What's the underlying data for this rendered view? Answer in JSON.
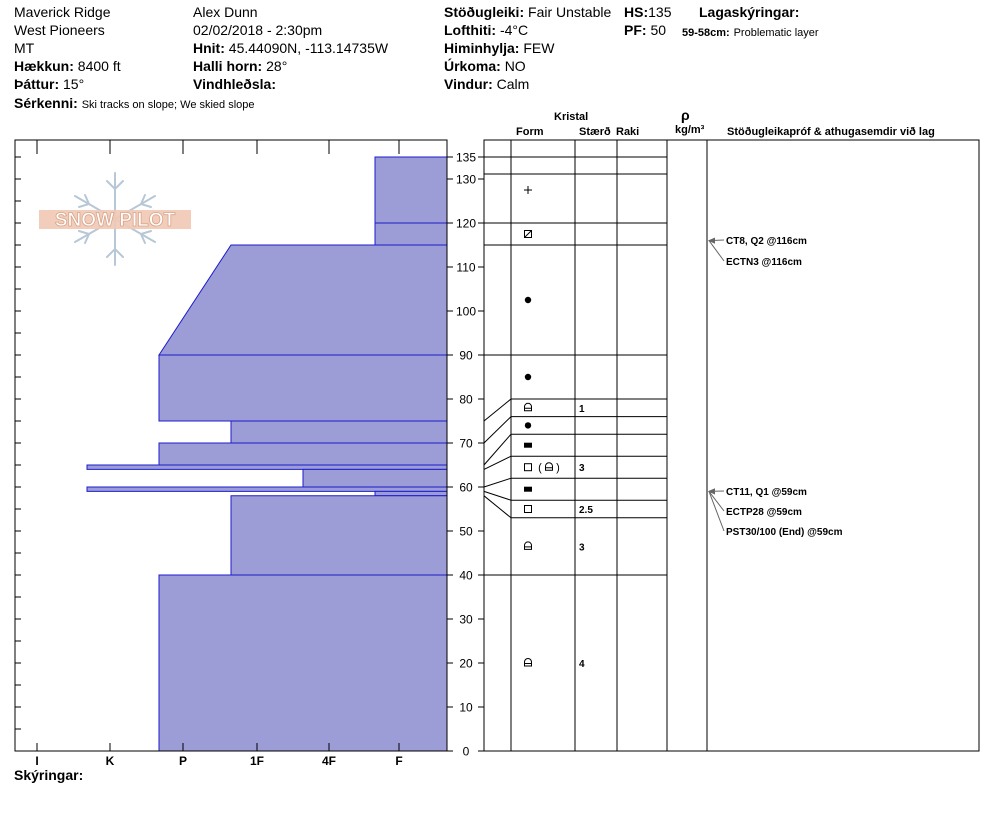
{
  "header": {
    "location": "Maverick Ridge",
    "range": "West Pioneers",
    "state": "MT",
    "elevation_label": "Hækkun:",
    "elevation": "8400 ft",
    "aspect_label": "Þáttur:",
    "aspect": "15°",
    "features_label": "Sérkenni:",
    "features": "Ski tracks on slope; We skied slope",
    "observer": "Alex Dunn",
    "datetime": "02/02/2018 - 2:30pm",
    "coords_label": "Hnit:",
    "coords": "45.44090N, -113.14735W",
    "slope_label": "Halli horn:",
    "slope": "28°",
    "wind_loading_label": "Vindhleðsla:",
    "wind_loading": "",
    "stability_label": "Stöðugleiki:",
    "stability": "Fair Unstable",
    "air_temp_label": "Lofthiti:",
    "air_temp": "-4°C",
    "sky_label": "Himinhylja:",
    "sky": "FEW",
    "precip_label": "Úrkoma:",
    "precip": "NO",
    "wind_label": "Vindur:",
    "wind": "Calm",
    "hs_label": "HS:",
    "hs": "135",
    "pf_label": "PF:",
    "pf": "50",
    "layer_notes_label": "Lagaskýringar:",
    "layer_notes_range": "59-58cm:",
    "layer_notes_text": "Problematic layer"
  },
  "footer": {
    "notes_label": "Skýringar:"
  },
  "logo": {
    "text": "SNOW PILOT"
  },
  "columns": {
    "crystal": "Kristal",
    "form": "Form",
    "size": "Stærð",
    "moisture": "Raki",
    "rho": "ρ",
    "density_unit": "kg/m³",
    "tests": "Stöðugleikapróf & athugasemdir við lag"
  },
  "colors": {
    "layer_fill": "#9c9cd6",
    "layer_edge": "#1c1ccc",
    "arrow": "#666666"
  },
  "chart_data": {
    "type": "bar",
    "title": "",
    "xlabel": "",
    "ylabel": "",
    "hardness_axis": [
      "I",
      "K",
      "P",
      "1F",
      "4F",
      "F"
    ],
    "ylim": [
      0,
      135
    ],
    "yticks": [
      0,
      10,
      20,
      30,
      40,
      50,
      60,
      70,
      80,
      90,
      100,
      110,
      120,
      130,
      135
    ],
    "layers": [
      {
        "top": 135,
        "bottom": 120,
        "hardness_top": 1.0,
        "hardness_bottom": 1.0
      },
      {
        "top": 120,
        "bottom": 115,
        "hardness_top": 1.0,
        "hardness_bottom": 1.0
      },
      {
        "top": 115,
        "bottom": 90,
        "hardness_top": 3.0,
        "hardness_bottom": 4.0
      },
      {
        "top": 90,
        "bottom": 75,
        "hardness_top": 4.0,
        "hardness_bottom": 4.0
      },
      {
        "top": 75,
        "bottom": 70,
        "hardness_top": 3.0,
        "hardness_bottom": 3.0
      },
      {
        "top": 70,
        "bottom": 65,
        "hardness_top": 4.0,
        "hardness_bottom": 4.0
      },
      {
        "top": 65,
        "bottom": 64,
        "hardness_top": 5.0,
        "hardness_bottom": 5.0
      },
      {
        "top": 64,
        "bottom": 60,
        "hardness_top": 2.0,
        "hardness_bottom": 2.0
      },
      {
        "top": 60,
        "bottom": 59,
        "hardness_top": 5.0,
        "hardness_bottom": 5.0
      },
      {
        "top": 59,
        "bottom": 58,
        "hardness_top": 1.0,
        "hardness_bottom": 1.0
      },
      {
        "top": 58,
        "bottom": 40,
        "hardness_top": 3.0,
        "hardness_bottom": 3.0
      },
      {
        "top": 40,
        "bottom": 0,
        "hardness_top": 4.0,
        "hardness_bottom": 4.0
      }
    ],
    "grain_rows": [
      {
        "top": 135,
        "bottom": 120,
        "form": "plus",
        "size": ""
      },
      {
        "top": 120,
        "bottom": 115,
        "form": "crossed-square",
        "size": ""
      },
      {
        "top": 115,
        "bottom": 90,
        "form": "dot",
        "size": ""
      },
      {
        "top": 90,
        "bottom": 80,
        "form": "dot",
        "size": ""
      },
      {
        "top": 80,
        "bottom": 76,
        "form": "cup",
        "size": "1"
      },
      {
        "top": 76,
        "bottom": 72,
        "form": "dot",
        "size": ""
      },
      {
        "top": 72,
        "bottom": 67,
        "form": "filled-rect",
        "size": ""
      },
      {
        "top": 67,
        "bottom": 62,
        "form": "square-cup",
        "size": "3"
      },
      {
        "top": 62,
        "bottom": 57,
        "form": "filled-rect",
        "size": ""
      },
      {
        "top": 57,
        "bottom": 53,
        "form": "square",
        "size": "2.5"
      },
      {
        "top": 53,
        "bottom": 40,
        "form": "cup",
        "size": "3"
      },
      {
        "top": 40,
        "bottom": 0,
        "form": "cup",
        "size": "4"
      }
    ],
    "tests": [
      {
        "height": 116,
        "text": "CT8, Q2 @116cm"
      },
      {
        "height": 116,
        "text": "ECTN3 @116cm"
      },
      {
        "height": 59,
        "text": "CT11, Q1 @59cm"
      },
      {
        "height": 59,
        "text": "ECTP28 @59cm"
      },
      {
        "height": 59,
        "text": "PST30/100 (End) @59cm"
      }
    ]
  }
}
